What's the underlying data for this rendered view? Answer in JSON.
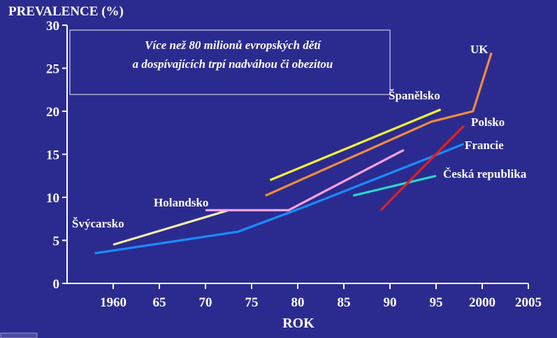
{
  "chart_data": {
    "type": "line",
    "ylabel": "PREVALENCE (%)",
    "xlabel": "ROK",
    "annotation": [
      "Více než 80 milionů evropských dětí",
      "a dospívajících trpí nadváhou či obezitou"
    ],
    "xlim": [
      1955,
      2005
    ],
    "ylim": [
      0,
      30
    ],
    "x_ticks": [
      1960,
      1965,
      1970,
      1975,
      1980,
      1985,
      1990,
      1995,
      2000,
      2005
    ],
    "x_tick_labels": [
      "1960",
      "65",
      "70",
      "75",
      "80",
      "85",
      "90",
      "95",
      "2000",
      "2005"
    ],
    "y_ticks": [
      0,
      5,
      10,
      15,
      20,
      25,
      30
    ],
    "y_tick_labels": [
      "0",
      "5",
      "10",
      "15",
      "20",
      "25",
      "30"
    ],
    "series": [
      {
        "name": "Švýcarsko",
        "color": "#f4eeaa",
        "points": [
          [
            1960,
            4.5
          ],
          [
            1972.5,
            8.5
          ]
        ]
      },
      {
        "name": "Holandsko",
        "color": "#f4a3e0",
        "points": [
          [
            1970,
            8.5
          ],
          [
            1979,
            8.5
          ],
          [
            1991.5,
            15.5
          ]
        ]
      },
      {
        "name": "Francie",
        "color": "#1a8cff",
        "points": [
          [
            1958,
            3.5
          ],
          [
            1973.5,
            6.0
          ],
          [
            1981,
            9.0
          ],
          [
            1994,
            14.5
          ],
          [
            1998,
            16.2
          ]
        ]
      },
      {
        "name": "Česká republika",
        "color": "#2ad6c8",
        "points": [
          [
            1986,
            10.2
          ],
          [
            1995,
            12.5
          ]
        ]
      },
      {
        "name": "Polsko",
        "color": "#e02020",
        "points": [
          [
            1989,
            8.5
          ],
          [
            1998,
            18.3
          ]
        ]
      },
      {
        "name": "Španělsko",
        "color": "#f0f03c",
        "points": [
          [
            1977,
            12.0
          ],
          [
            1995.5,
            20.2
          ]
        ]
      },
      {
        "name": "UK",
        "color": "#f08c3c",
        "points": [
          [
            1976.5,
            10.2
          ],
          [
            1994.5,
            18.8
          ],
          [
            1999,
            20.0
          ],
          [
            2001,
            26.8
          ]
        ]
      }
    ],
    "grid": false,
    "legend": "none"
  }
}
